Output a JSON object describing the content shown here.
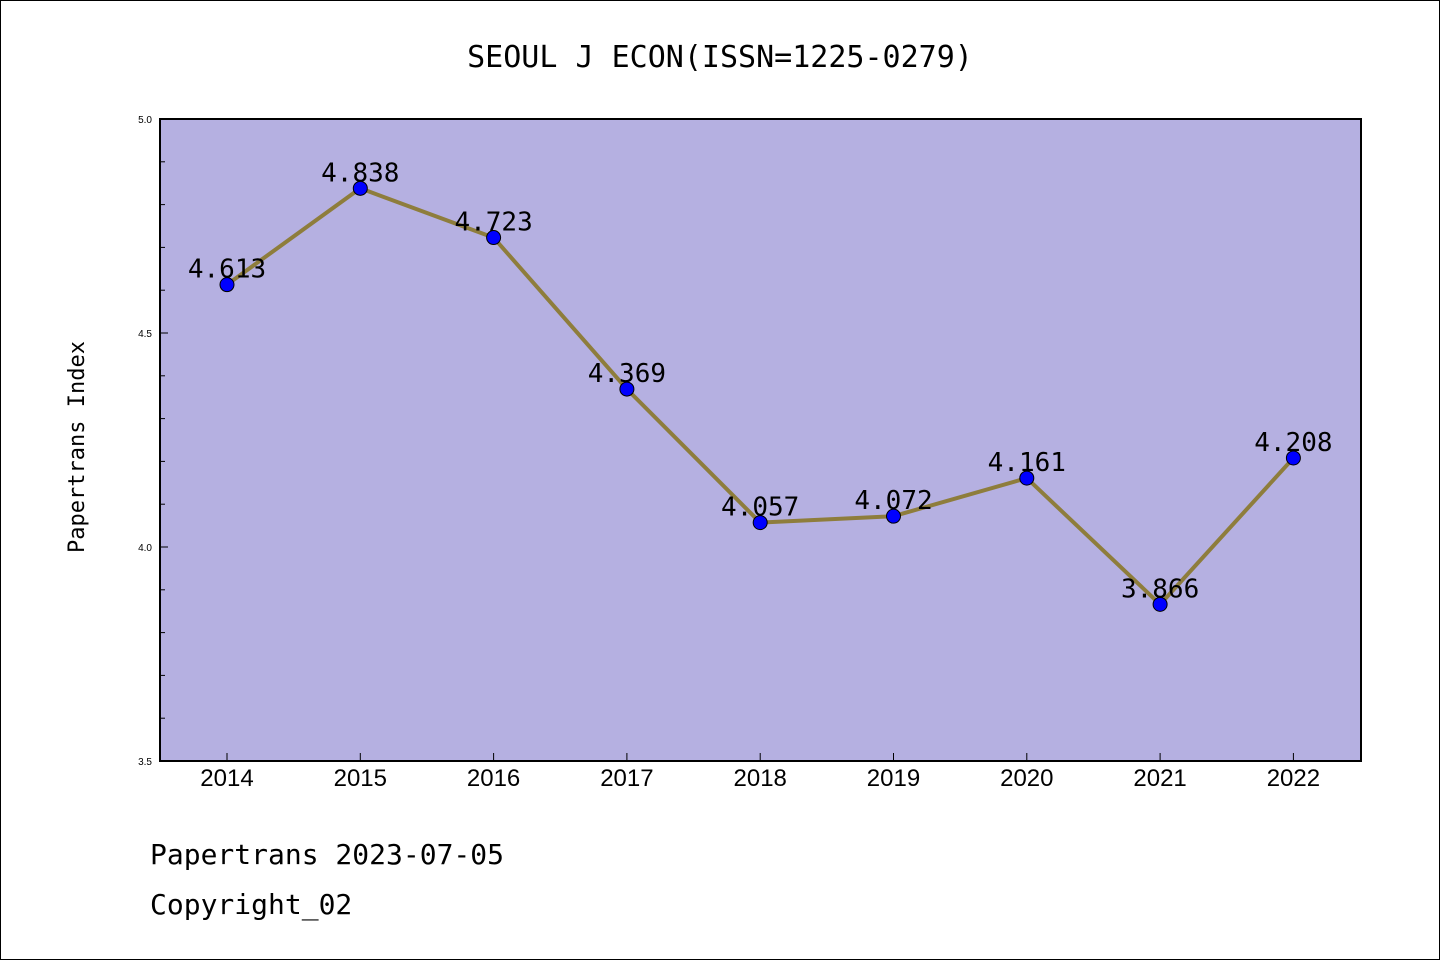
{
  "chart_data": {
    "type": "line",
    "title": "SEOUL J ECON(ISSN=1225-0279)",
    "xlabel": "",
    "ylabel": "Papertrans Index",
    "categories": [
      "2014",
      "2015",
      "2016",
      "2017",
      "2018",
      "2019",
      "2020",
      "2021",
      "2022"
    ],
    "values": [
      4.613,
      4.838,
      4.723,
      4.369,
      4.057,
      4.072,
      4.161,
      3.866,
      4.208
    ],
    "data_labels": [
      "4.613",
      "4.838",
      "4.723",
      "4.369",
      "4.057",
      "4.072",
      "4.161",
      "3.866",
      "4.208"
    ],
    "ylim": [
      3.5,
      5.0
    ],
    "yticks": [
      "5.0",
      "4.5",
      "4.0",
      "3.5"
    ],
    "ytick_values": [
      5.0,
      4.5,
      4.0,
      3.5
    ],
    "grid": false,
    "colors": {
      "plot_background": "#b5b0e1",
      "line": "#8e7d3c",
      "marker": "#0000ff"
    }
  },
  "footer": {
    "line1": "Papertrans 2023-07-05",
    "line2": "Copyright_02"
  }
}
